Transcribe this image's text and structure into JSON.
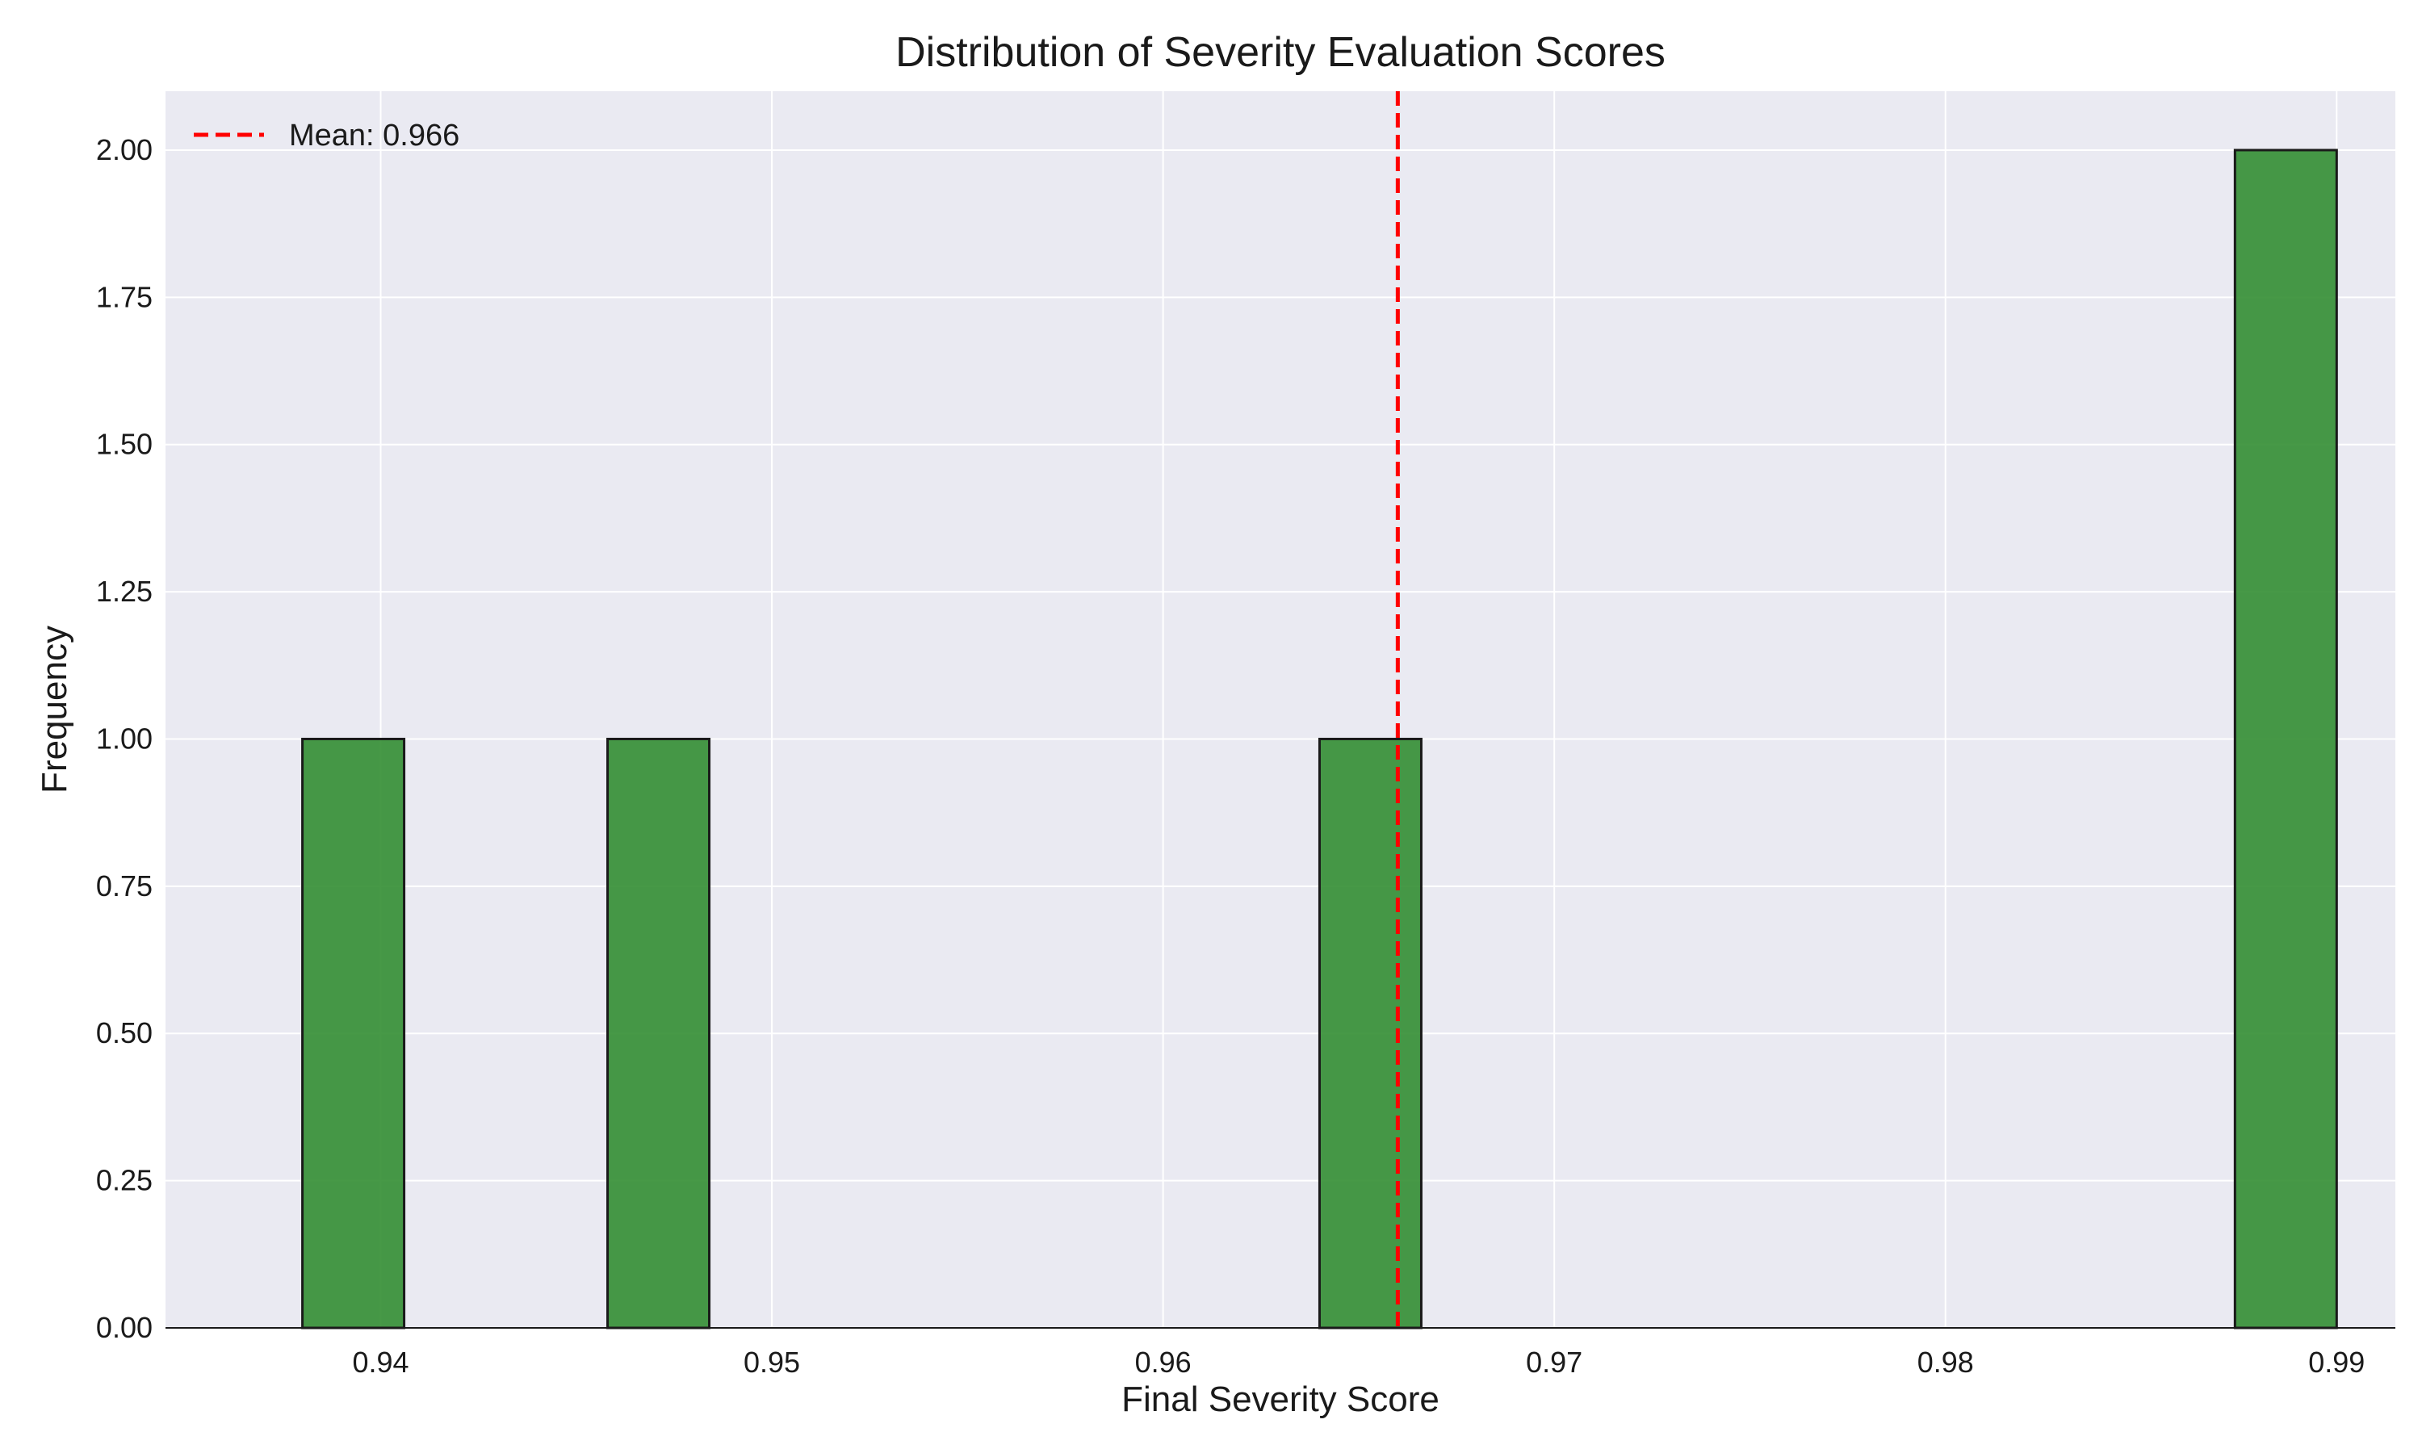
{
  "chart_data": {
    "type": "bar",
    "title": "Distribution of Severity Evaluation Scores",
    "xlabel": "Final Severity Score",
    "ylabel": "Frequency",
    "xlim": [
      0.9345,
      0.9915
    ],
    "ylim": [
      0,
      2.1
    ],
    "grid": true,
    "legend_position": "top-left",
    "x_ticks": [
      "0.94",
      "0.95",
      "0.96",
      "0.97",
      "0.98",
      "0.99"
    ],
    "x_tick_values": [
      0.94,
      0.95,
      0.96,
      0.97,
      0.98,
      0.99
    ],
    "y_ticks": [
      "0.00",
      "0.25",
      "0.50",
      "0.75",
      "1.00",
      "1.25",
      "1.50",
      "1.75",
      "2.00"
    ],
    "y_tick_values": [
      0,
      0.25,
      0.5,
      0.75,
      1.0,
      1.25,
      1.5,
      1.75,
      2.0
    ],
    "bins": [
      {
        "start": 0.938,
        "end": 0.9406,
        "count": 1
      },
      {
        "start": 0.9458,
        "end": 0.9484,
        "count": 1
      },
      {
        "start": 0.964,
        "end": 0.9666,
        "count": 1
      },
      {
        "start": 0.9874,
        "end": 0.99,
        "count": 2
      }
    ],
    "mean_line": {
      "value": 0.966,
      "label": "Mean: 0.966"
    },
    "colors": {
      "bar_fill": "#2e8b2e",
      "bar_edge": "#1a1a1a",
      "mean_line": "#ff0000",
      "plot_background": "#eaeaf2",
      "grid": "#ffffff"
    }
  }
}
